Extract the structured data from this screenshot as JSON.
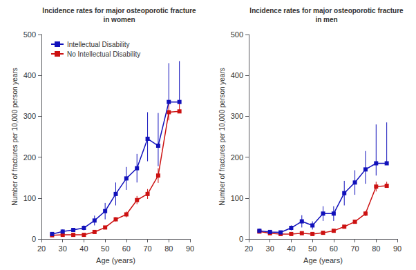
{
  "chart_data": [
    {
      "type": "line",
      "title": "Incidence rates for major osteoporotic fracture\nin women",
      "xlabel": "Age (years)",
      "ylabel": "Number of fractures per 10,000 person years",
      "x": [
        25,
        30,
        35,
        40,
        45,
        50,
        55,
        60,
        65,
        70,
        75,
        80,
        85
      ],
      "series": [
        {
          "name": "Intellectual Disability",
          "color": "#1111bb",
          "marker": "square",
          "values": [
            12,
            18,
            22,
            27,
            45,
            68,
            110,
            148,
            173,
            245,
            228,
            335,
            335
          ],
          "error_lo": [
            4,
            5,
            5,
            6,
            12,
            20,
            28,
            28,
            35,
            55,
            50,
            0,
            0
          ],
          "error_hi": [
            4,
            5,
            5,
            6,
            12,
            20,
            28,
            28,
            35,
            65,
            80,
            95,
            100
          ]
        },
        {
          "name": "No Intellectual Disability",
          "color": "#cc1111",
          "marker": "square",
          "values": [
            9,
            10,
            10,
            10,
            17,
            28,
            48,
            60,
            95,
            110,
            155,
            310,
            312
          ],
          "error_lo": [
            1,
            1,
            1,
            1,
            2,
            3,
            5,
            7,
            10,
            12,
            18,
            20,
            0
          ],
          "error_hi": [
            1,
            1,
            1,
            1,
            2,
            3,
            5,
            7,
            10,
            12,
            18,
            20,
            20
          ]
        }
      ],
      "xlim": [
        20,
        90
      ],
      "xticks": [
        20,
        30,
        40,
        50,
        60,
        70,
        80,
        90
      ],
      "ylim": [
        0,
        500
      ],
      "yticks": [
        0,
        100,
        200,
        300,
        400,
        500
      ],
      "grid": false,
      "legend": "upper left"
    },
    {
      "type": "line",
      "title": "Incidence rates for major osteoporotic fracture\nin men",
      "xlabel": "Age (years)",
      "ylabel": "Number of fractures per 10,000 person years",
      "x": [
        25,
        30,
        35,
        40,
        45,
        50,
        55,
        60,
        65,
        70,
        75,
        80,
        85
      ],
      "series": [
        {
          "name": "Intellectual Disability",
          "color": "#1111bb",
          "marker": "square",
          "values": [
            20,
            17,
            16,
            27,
            43,
            33,
            62,
            62,
            112,
            138,
            170,
            185,
            185
          ],
          "error_lo": [
            5,
            4,
            4,
            6,
            15,
            10,
            18,
            18,
            30,
            30,
            35,
            30,
            0
          ],
          "error_hi": [
            5,
            4,
            4,
            6,
            15,
            10,
            18,
            18,
            30,
            30,
            45,
            95,
            100
          ]
        },
        {
          "name": "No Intellectual Disability",
          "color": "#cc1111",
          "marker": "square",
          "values": [
            18,
            14,
            12,
            12,
            14,
            12,
            15,
            20,
            30,
            42,
            62,
            128,
            130
          ],
          "error_lo": [
            1,
            1,
            1,
            1,
            1,
            1,
            1,
            2,
            3,
            4,
            6,
            12,
            0
          ],
          "error_hi": [
            1,
            1,
            1,
            1,
            1,
            1,
            1,
            2,
            3,
            4,
            6,
            12,
            10
          ]
        }
      ],
      "xlim": [
        20,
        90
      ],
      "xticks": [
        20,
        30,
        40,
        50,
        60,
        70,
        80,
        90
      ],
      "ylim": [
        0,
        500
      ],
      "yticks": [
        0,
        100,
        200,
        300,
        400,
        500
      ],
      "grid": false
    }
  ]
}
